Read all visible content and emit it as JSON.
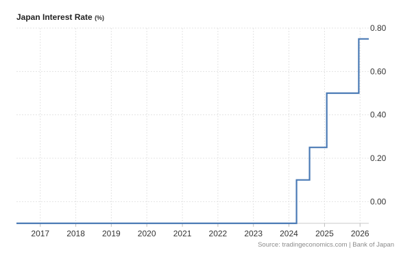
{
  "chart_data": {
    "type": "line",
    "line_style": "step",
    "title": "Japan Interest Rate",
    "title_unit": "(%)",
    "xlabel": "",
    "ylabel": "",
    "x_ticks": [
      "2017",
      "2018",
      "2019",
      "2020",
      "2021",
      "2022",
      "2023",
      "2024",
      "2025",
      "2026"
    ],
    "y_ticks": [
      0.8,
      0.6,
      0.4,
      0.2,
      0.0
    ],
    "y_tick_labels": [
      "0.80",
      "0.60",
      "0.40",
      "0.20",
      "0.00"
    ],
    "ylim": [
      -0.1,
      0.8
    ],
    "xlim": [
      "2016-05-01",
      "2026-04-01"
    ],
    "grid": true,
    "axis_side": "right",
    "series": [
      {
        "color": "#4a7ab5",
        "points": [
          {
            "x": "2016-05-01",
            "y": -0.1
          },
          {
            "x": "2024-03-19",
            "y": 0.1
          },
          {
            "x": "2024-07-31",
            "y": 0.25
          },
          {
            "x": "2025-01-24",
            "y": 0.5
          },
          {
            "x": "2025-12-19",
            "y": 0.75
          },
          {
            "x": "2026-04-01",
            "y": 0.75
          }
        ]
      }
    ]
  },
  "source_text": "Source: tradingeconomics.com | Bank of Japan"
}
